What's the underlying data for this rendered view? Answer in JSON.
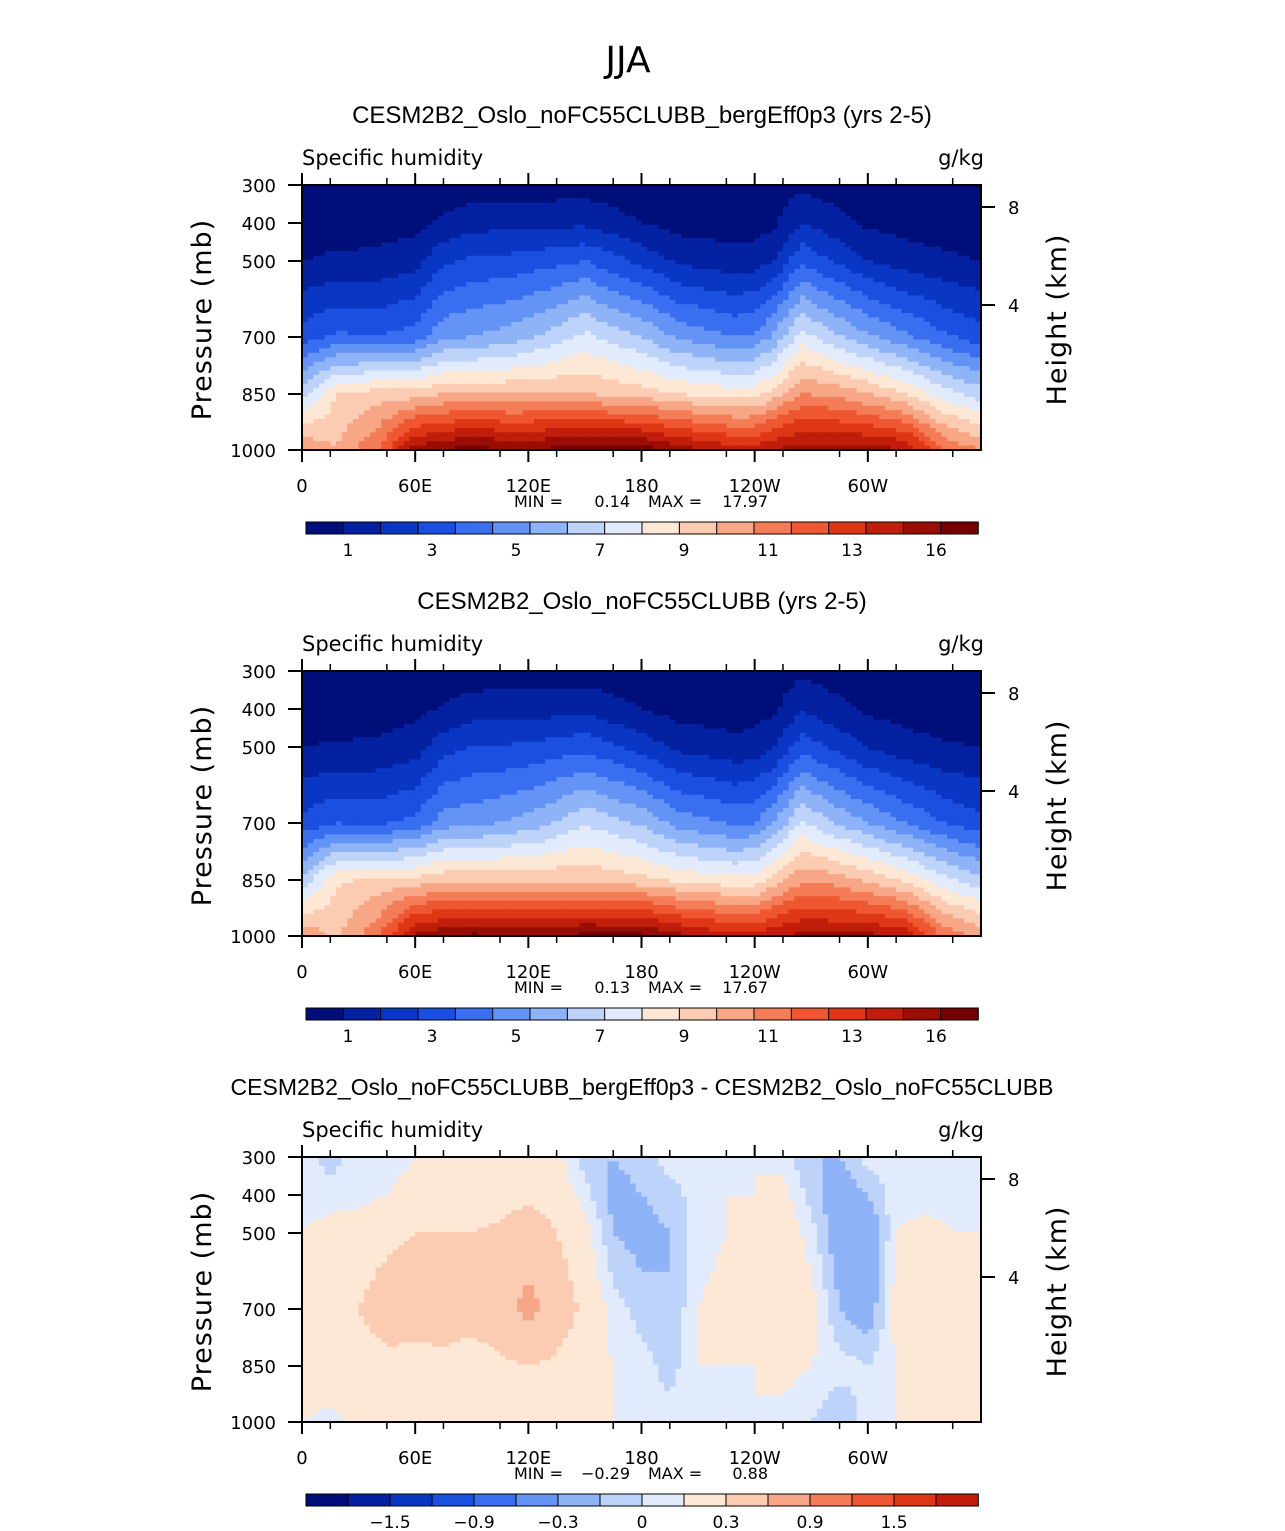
{
  "figure": {
    "season": "JJA"
  },
  "chart_data": [
    {
      "type": "heatmap",
      "title": "CESM2B2_Oslo_noFC55CLUBB_bergEff0p3 (yrs 2-5)",
      "left_label": "Specific humidity",
      "right_label": "g/kg",
      "ylabel": "Pressure (mb)",
      "y2label": "Height (km)",
      "yticks": [
        "300",
        "400",
        "500",
        "700",
        "850",
        "1000"
      ],
      "y2ticks": [
        "8",
        "4"
      ],
      "xticks": [
        "0",
        "60E",
        "120E",
        "180",
        "120W",
        "60W"
      ],
      "stats": {
        "min_label": "MIN =",
        "min": "0.14",
        "max_label": "MAX =",
        "max": "17.97"
      },
      "colorbar_labels": [
        "1",
        "3",
        "5",
        "7",
        "9",
        "11",
        "13",
        "16"
      ],
      "colors": [
        "#000e7a",
        "#0321a0",
        "#0a36c4",
        "#1b4fe0",
        "#3a6ef0",
        "#6293f5",
        "#8fb3f7",
        "#bdd3fa",
        "#e2ebfb",
        "#fde8d6",
        "#fbcbb2",
        "#f7a786",
        "#f47c56",
        "#ee5731",
        "#de3716",
        "#c01e0b",
        "#9a0d04",
        "#760000"
      ],
      "grid": {
        "lon": [
          0,
          18,
          40,
          60,
          75,
          90,
          110,
          128,
          150,
          180,
          200,
          230,
          240,
          250,
          265,
          280,
          300,
          320,
          340,
          360
        ],
        "p": [
          300,
          400,
          500,
          700,
          850,
          1000
        ],
        "values": [
          [
            0.3,
            0.3,
            0.3,
            0.3,
            0.3,
            0.4,
            0.5,
            0.5,
            0.5,
            0.3,
            0.3,
            0.2,
            0.2,
            0.4,
            0.8,
            0.5,
            0.4,
            0.3,
            0.3,
            0.3
          ],
          [
            0.4,
            0.4,
            0.5,
            0.7,
            1.2,
            1.6,
            1.7,
            1.7,
            1.8,
            1.0,
            0.6,
            0.5,
            0.6,
            0.8,
            2.0,
            1.5,
            0.8,
            0.6,
            0.5,
            0.4
          ],
          [
            1.0,
            1.2,
            1.3,
            1.6,
            2.8,
            3.2,
            3.3,
            3.6,
            4.0,
            2.7,
            1.8,
            1.4,
            1.5,
            2.0,
            3.8,
            3.0,
            2.0,
            1.5,
            1.2,
            1.0
          ],
          [
            3.5,
            4.2,
            4.0,
            4.5,
            5.8,
            6.0,
            6.5,
            7.2,
            8.3,
            7.0,
            5.8,
            5.0,
            5.2,
            6.2,
            8.5,
            7.4,
            6.2,
            5.2,
            4.2,
            3.5
          ],
          [
            7.5,
            10.0,
            10.5,
            10.5,
            11.0,
            11.0,
            11.0,
            11.0,
            11.0,
            10.5,
            10.0,
            9.5,
            9.6,
            10.5,
            12.0,
            11.8,
            11.0,
            10.0,
            8.5,
            7.5
          ],
          [
            12.0,
            11.0,
            13.0,
            16.5,
            17.0,
            17.5,
            17.0,
            17.2,
            17.5,
            17.5,
            16.5,
            15.5,
            15.5,
            16.0,
            16.5,
            16.5,
            16.5,
            16.0,
            13.0,
            12.0
          ]
        ]
      }
    },
    {
      "type": "heatmap",
      "title": "CESM2B2_Oslo_noFC55CLUBB (yrs 2-5)",
      "left_label": "Specific humidity",
      "right_label": "g/kg",
      "ylabel": "Pressure (mb)",
      "y2label": "Height (km)",
      "yticks": [
        "300",
        "400",
        "500",
        "700",
        "850",
        "1000"
      ],
      "y2ticks": [
        "8",
        "4"
      ],
      "xticks": [
        "0",
        "60E",
        "120E",
        "180",
        "120W",
        "60W"
      ],
      "stats": {
        "min_label": "MIN =",
        "min": "0.13",
        "max_label": "MAX =",
        "max": "17.67"
      },
      "colorbar_labels": [
        "1",
        "3",
        "5",
        "7",
        "9",
        "11",
        "13",
        "16"
      ],
      "colors": [
        "#000e7a",
        "#0321a0",
        "#0a36c4",
        "#1b4fe0",
        "#3a6ef0",
        "#6293f5",
        "#8fb3f7",
        "#bdd3fa",
        "#e2ebfb",
        "#fde8d6",
        "#fbcbb2",
        "#f7a786",
        "#f47c56",
        "#ee5731",
        "#de3716",
        "#c01e0b",
        "#9a0d04",
        "#760000"
      ],
      "grid": {
        "lon": [
          0,
          18,
          40,
          60,
          75,
          90,
          110,
          128,
          150,
          180,
          200,
          230,
          240,
          250,
          265,
          280,
          300,
          320,
          340,
          360
        ],
        "p": [
          300,
          400,
          500,
          700,
          850,
          1000
        ],
        "values": [
          [
            0.3,
            0.3,
            0.3,
            0.3,
            0.3,
            0.4,
            0.5,
            0.5,
            0.5,
            0.3,
            0.3,
            0.2,
            0.2,
            0.4,
            0.8,
            0.5,
            0.4,
            0.3,
            0.3,
            0.3
          ],
          [
            0.4,
            0.4,
            0.5,
            0.7,
            1.1,
            1.5,
            1.6,
            1.6,
            1.7,
            1.0,
            0.6,
            0.5,
            0.6,
            0.8,
            1.9,
            1.4,
            0.8,
            0.6,
            0.5,
            0.4
          ],
          [
            1.0,
            1.1,
            1.2,
            1.5,
            2.6,
            3.0,
            3.1,
            3.3,
            3.7,
            2.6,
            1.7,
            1.3,
            1.4,
            1.9,
            3.6,
            2.9,
            1.9,
            1.4,
            1.1,
            1.0
          ],
          [
            3.3,
            4.0,
            3.8,
            4.3,
            5.5,
            5.7,
            6.1,
            6.7,
            7.9,
            6.8,
            5.6,
            4.8,
            5.0,
            6.0,
            8.2,
            7.1,
            6.0,
            5.0,
            4.0,
            3.3
          ],
          [
            7.3,
            9.8,
            10.3,
            10.3,
            10.8,
            10.8,
            10.8,
            10.8,
            10.8,
            10.3,
            9.8,
            9.3,
            9.4,
            10.3,
            11.8,
            11.6,
            10.8,
            9.8,
            8.3,
            7.3
          ],
          [
            11.8,
            10.8,
            12.8,
            16.3,
            16.8,
            17.3,
            16.8,
            17.0,
            17.3,
            17.3,
            16.3,
            15.3,
            15.3,
            15.8,
            16.3,
            16.3,
            16.3,
            15.8,
            12.8,
            11.8
          ]
        ]
      }
    },
    {
      "type": "heatmap",
      "title": "CESM2B2_Oslo_noFC55CLUBB_bergEff0p3 - CESM2B2_Oslo_noFC55CLUBB",
      "left_label": "Specific humidity",
      "right_label": "g/kg",
      "ylabel": "Pressure (mb)",
      "y2label": "Height (km)",
      "yticks": [
        "300",
        "400",
        "500",
        "700",
        "850",
        "1000"
      ],
      "y2ticks": [
        "8",
        "4"
      ],
      "xticks": [
        "0",
        "60E",
        "120E",
        "180",
        "120W",
        "60W"
      ],
      "stats": {
        "min_label": "MIN =",
        "min": "−0.29",
        "max_label": "MAX =",
        "max": "0.88"
      },
      "colorbar_labels": [
        "−1.5",
        "−0.9",
        "−0.3",
        "0",
        "0.3",
        "0.9",
        "1.5"
      ],
      "colors": [
        "#000e7a",
        "#0321a0",
        "#0a36c4",
        "#1b4fe0",
        "#3a6ef0",
        "#6293f5",
        "#8fb3f7",
        "#bdd3fa",
        "#e2ebfb",
        "#fde8d6",
        "#fbcbb2",
        "#f7a786",
        "#f47c56",
        "#ee5731",
        "#de3716",
        "#c01e0b"
      ],
      "grid": {
        "lon": [
          0,
          15,
          30,
          45,
          60,
          75,
          90,
          105,
          120,
          135,
          150,
          165,
          180,
          195,
          210,
          225,
          240,
          255,
          270,
          285,
          300,
          315,
          330,
          345,
          360
        ],
        "p": [
          300,
          400,
          500,
          700,
          850,
          1000
        ],
        "values": [
          [
            0.05,
            -0.05,
            0.05,
            0.05,
            0.1,
            0.1,
            0.1,
            0.15,
            0.2,
            0.15,
            -0.05,
            -0.1,
            -0.05,
            0.05,
            0.05,
            0.05,
            0.1,
            0.05,
            -0.1,
            -0.1,
            0.05,
            0.05,
            0.05,
            0.05,
            0.05
          ],
          [
            0.05,
            0.05,
            0.05,
            0.1,
            0.15,
            0.15,
            0.15,
            0.2,
            0.25,
            0.2,
            0.05,
            -0.15,
            -0.1,
            -0.05,
            0.05,
            0.1,
            0.1,
            0.15,
            -0.05,
            -0.2,
            -0.1,
            0.05,
            0.05,
            0.05,
            0.05
          ],
          [
            0.1,
            0.15,
            0.2,
            0.25,
            0.3,
            0.3,
            0.3,
            0.35,
            0.45,
            0.3,
            0.15,
            -0.1,
            -0.15,
            -0.1,
            0.05,
            0.1,
            0.15,
            0.2,
            0.05,
            -0.2,
            -0.25,
            0.1,
            0.15,
            0.1,
            0.1
          ],
          [
            0.2,
            0.25,
            0.3,
            0.4,
            0.45,
            0.4,
            0.4,
            0.45,
            0.7,
            0.45,
            0.25,
            0.05,
            -0.05,
            -0.1,
            0.1,
            0.15,
            0.15,
            0.2,
            0.15,
            -0.1,
            -0.2,
            0.15,
            0.2,
            0.2,
            0.2
          ],
          [
            0.2,
            0.25,
            0.2,
            0.25,
            0.2,
            0.25,
            0.2,
            0.25,
            0.3,
            0.25,
            0.15,
            0.1,
            0.05,
            -0.05,
            0.1,
            0.1,
            0.1,
            0.15,
            0.1,
            0.05,
            0.0,
            0.1,
            0.15,
            0.2,
            0.2
          ],
          [
            0.1,
            0.05,
            0.15,
            0.2,
            0.15,
            0.2,
            0.15,
            0.2,
            0.25,
            0.2,
            0.15,
            0.1,
            0.05,
            0.05,
            0.1,
            0.05,
            0.1,
            0.05,
            0.0,
            -0.1,
            0.05,
            0.1,
            0.15,
            0.15,
            0.1
          ]
        ]
      }
    }
  ]
}
